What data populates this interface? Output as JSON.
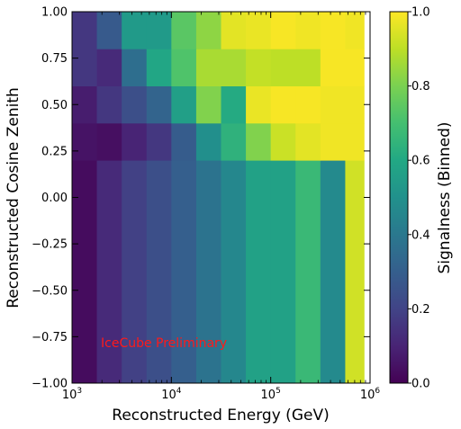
{
  "chart_data": {
    "type": "heatmap",
    "xlabel": "Reconstructed Energy (GeV)",
    "ylabel": "Reconstructed Cosine Zenith",
    "colorbar_label": "Signalness (Binned)",
    "annotation": "IceCube Preliminary",
    "annotation_color": "#ff1a1a",
    "colormap": "viridis",
    "x_scale": "log",
    "xlim": [
      1000,
      1000000
    ],
    "ylim": [
      -1.0,
      1.0
    ],
    "clim": [
      0.0,
      1.0
    ],
    "x_edges": [
      1000,
      1778,
      3162,
      5623,
      10000,
      17783,
      31623,
      56234,
      100000,
      177828,
      316228,
      562341,
      870964
    ],
    "y_edges": [
      -1.0,
      0.2,
      0.4,
      0.6,
      0.8,
      1.0
    ],
    "values": [
      [
        0.03,
        0.12,
        0.19,
        0.24,
        0.3,
        0.38,
        0.46,
        0.57,
        0.57,
        0.67,
        0.47,
        0.93
      ],
      [
        0.05,
        0.04,
        0.1,
        0.16,
        0.29,
        0.49,
        0.64,
        0.81,
        0.92,
        0.96,
        0.98,
        0.98
      ],
      [
        0.08,
        0.16,
        0.24,
        0.32,
        0.56,
        0.81,
        0.61,
        0.97,
        0.99,
        0.99,
        0.98,
        0.98
      ],
      [
        0.16,
        0.12,
        0.36,
        0.59,
        0.72,
        0.87,
        0.87,
        0.91,
        0.9,
        0.9,
        0.99,
        0.99
      ],
      [
        0.16,
        0.28,
        0.54,
        0.54,
        0.74,
        0.83,
        0.96,
        0.97,
        0.99,
        0.98,
        0.99,
        0.98
      ]
    ],
    "x_ticks": [
      {
        "value": 1000,
        "base": "10",
        "exp": "3"
      },
      {
        "value": 10000,
        "base": "10",
        "exp": "4"
      },
      {
        "value": 100000,
        "base": "10",
        "exp": "5"
      },
      {
        "value": 1000000,
        "base": "10",
        "exp": "6"
      }
    ],
    "y_ticks": [
      {
        "value": -1.0,
        "label": "−1.00"
      },
      {
        "value": -0.75,
        "label": "−0.75"
      },
      {
        "value": -0.5,
        "label": "−0.50"
      },
      {
        "value": -0.25,
        "label": "−0.25"
      },
      {
        "value": 0.0,
        "label": "0.00"
      },
      {
        "value": 0.25,
        "label": "0.25"
      },
      {
        "value": 0.5,
        "label": "0.50"
      },
      {
        "value": 0.75,
        "label": "0.75"
      },
      {
        "value": 1.0,
        "label": "1.00"
      }
    ],
    "colorbar_ticks": [
      {
        "value": 0.0,
        "label": "0.0"
      },
      {
        "value": 0.2,
        "label": "0.2"
      },
      {
        "value": 0.4,
        "label": "0.4"
      },
      {
        "value": 0.6,
        "label": "0.6"
      },
      {
        "value": 0.8,
        "label": "0.8"
      },
      {
        "value": 1.0,
        "label": "1.0"
      }
    ],
    "grid": false,
    "legend": "none"
  }
}
